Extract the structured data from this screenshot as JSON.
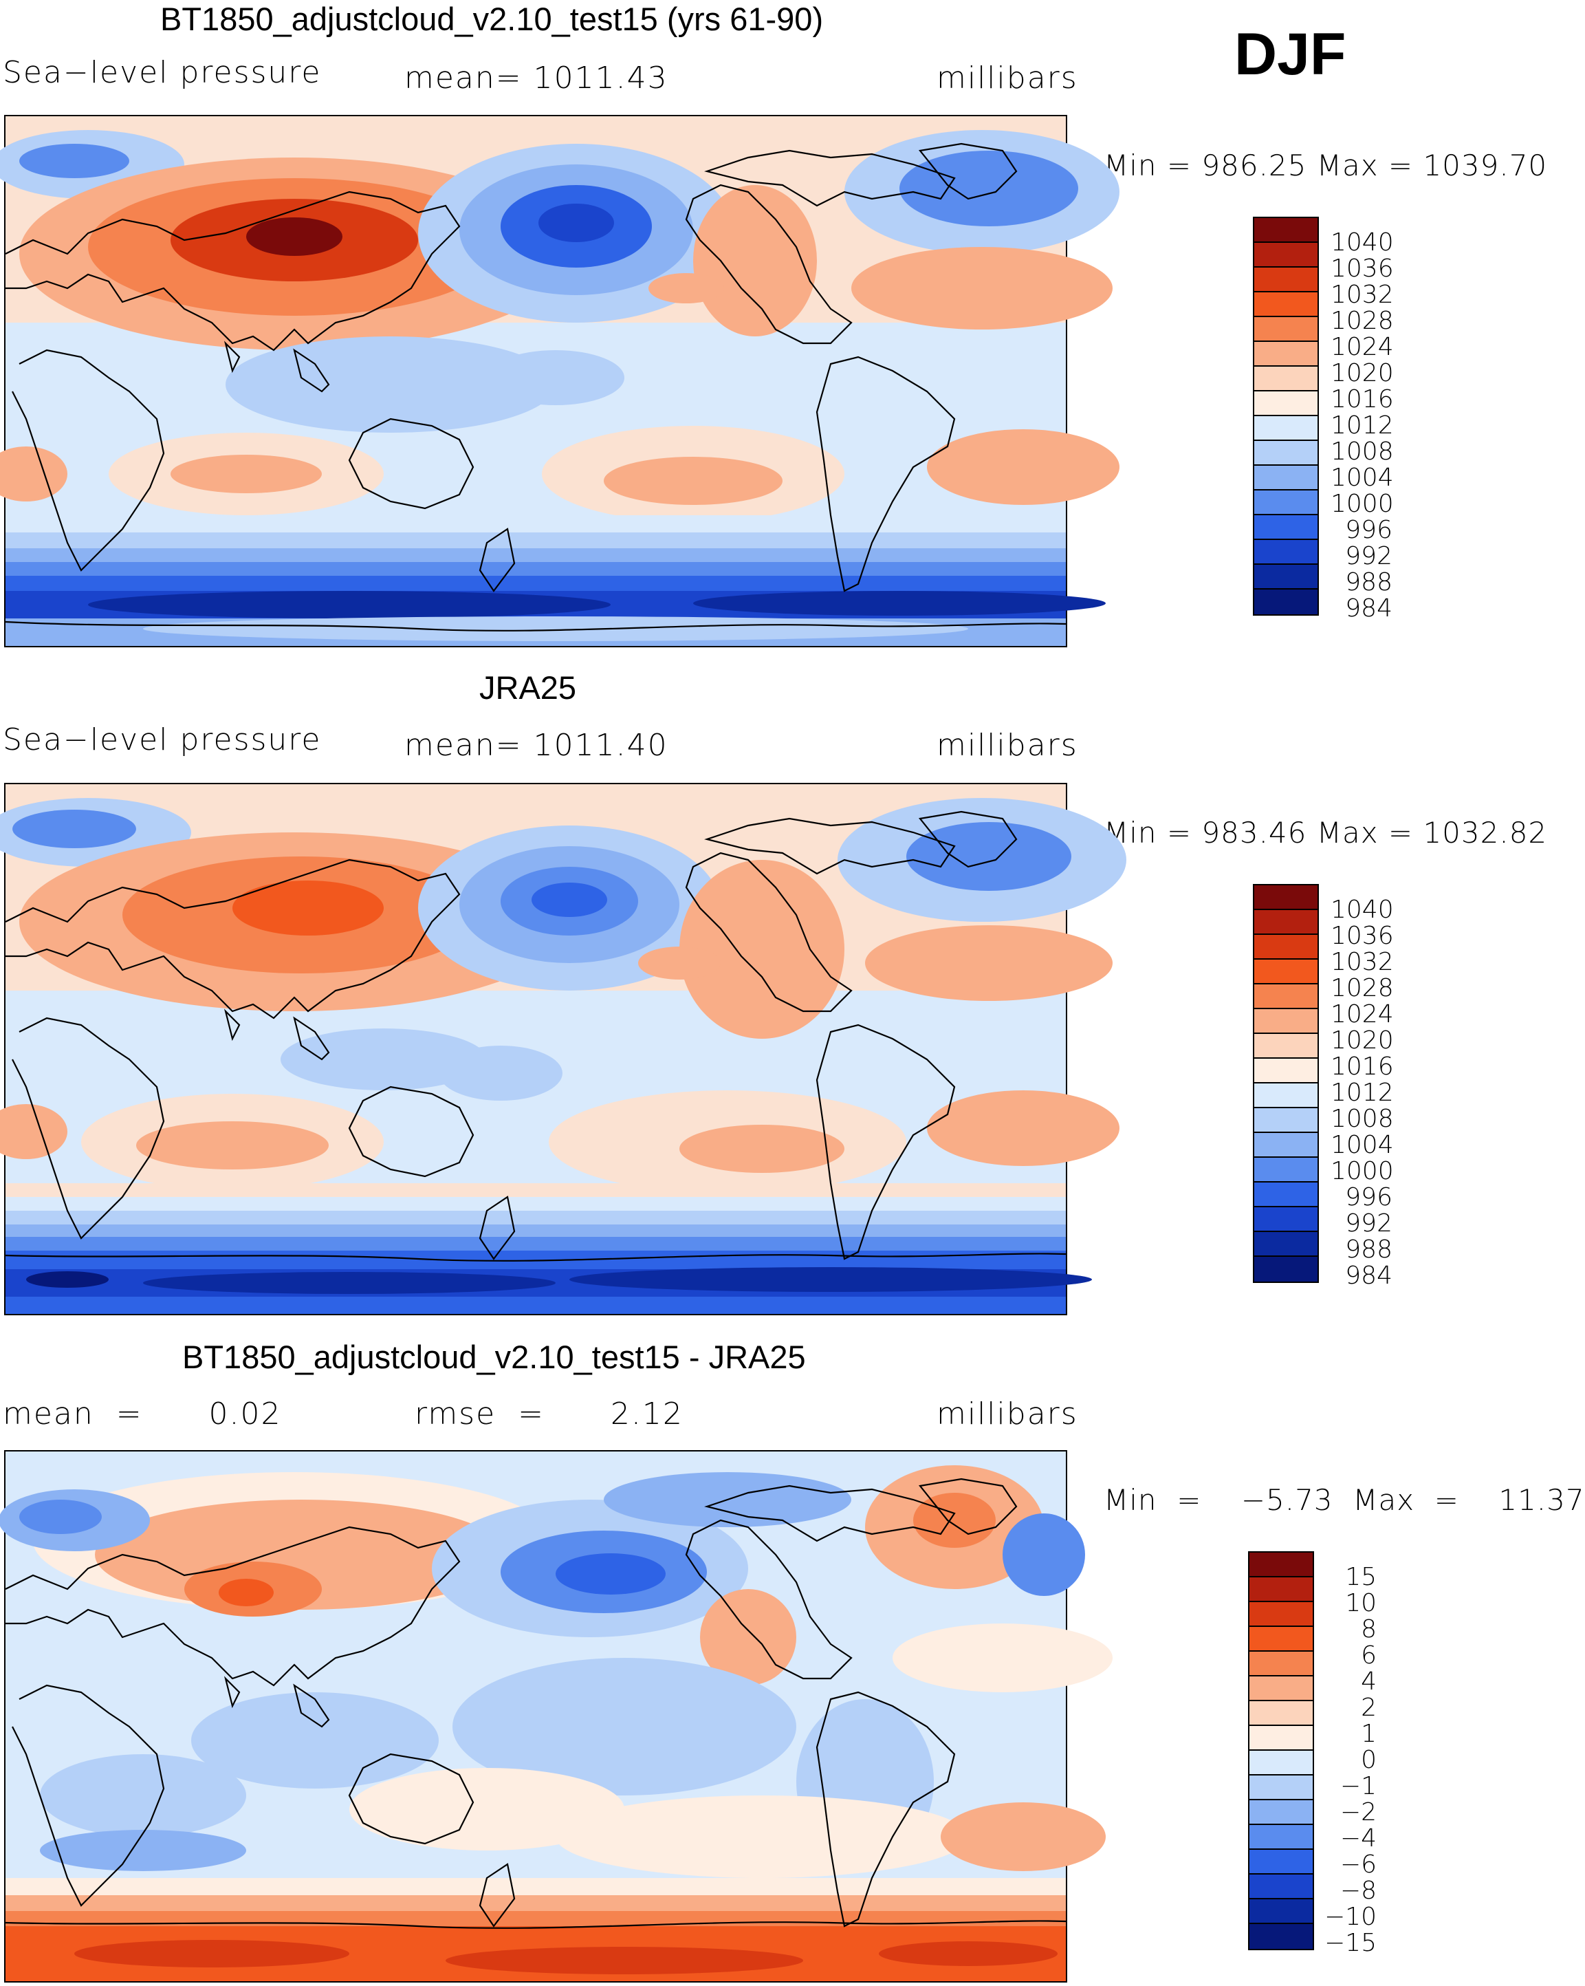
{
  "season": "DJF",
  "panels": [
    {
      "title": "BT1850_adjustcloud_v2.10_test15 (yrs 61-90)",
      "left_label": "Sea−level pressure",
      "center_label": "mean=  1011.43",
      "right_label": "millibars",
      "minmax": "Min  =  986.25  Max  =  1039.70",
      "colorbar_levels": [
        "1040",
        "1036",
        "1032",
        "1028",
        "1024",
        "1020",
        "1016",
        "1012",
        "1008",
        "1004",
        "1000",
        "996",
        "992",
        "988",
        "984"
      ]
    },
    {
      "title": "JRA25",
      "left_label": "Sea−level pressure",
      "center_label": "mean=  1011.40",
      "right_label": "millibars",
      "minmax": "Min  =  983.46  Max  =  1032.82",
      "colorbar_levels": [
        "1040",
        "1036",
        "1032",
        "1028",
        "1024",
        "1020",
        "1016",
        "1012",
        "1008",
        "1004",
        "1000",
        "996",
        "992",
        "988",
        "984"
      ]
    },
    {
      "title": "BT1850_adjustcloud_v2.10_test15 - JRA25",
      "left_label": "mean  =      0.02",
      "center_label": "rmse  =      2.12",
      "right_label": "millibars",
      "minmax": "Min  =    −5.73  Max  =    11.37",
      "colorbar_levels": [
        "15",
        "10",
        "8",
        "6",
        "4",
        "2",
        "1",
        "0",
        "−1",
        "−2",
        "−4",
        "−6",
        "−8",
        "−10",
        "−15"
      ]
    }
  ],
  "colors": {
    "c0": "#7a0a0a",
    "c1": "#b3200f",
    "c2": "#d93a12",
    "c3": "#f2581e",
    "c4": "#f5834f",
    "c5": "#f9ad87",
    "c6": "#fcd4bc",
    "c7": "#feeee2",
    "c8": "#d9eafc",
    "c9": "#b4d0f8",
    "c10": "#8bb2f3",
    "c11": "#5a8cee",
    "c12": "#2e63e6",
    "c13": "#1a44cc",
    "c14": "#0b2aa0",
    "c15": "#06187a"
  }
}
